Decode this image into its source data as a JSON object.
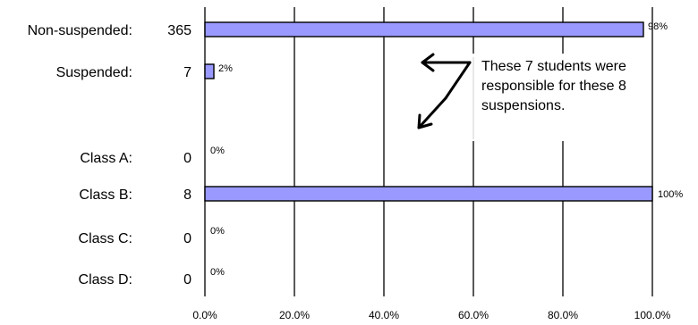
{
  "chart_data": {
    "type": "bar",
    "orientation": "horizontal",
    "xlim": [
      0,
      100
    ],
    "x_ticks": [
      "0.0%",
      "20.0%",
      "40.0%",
      "60.0%",
      "80.0%",
      "100.0%"
    ],
    "rows": [
      {
        "label": "Non-suspended:",
        "count": "365",
        "value": 98,
        "value_label": "98%"
      },
      {
        "label": "Suspended:",
        "count": "7",
        "value": 2,
        "value_label": "2%"
      },
      {
        "label": "Class A:",
        "count": "0",
        "value": 0,
        "value_label": "0%"
      },
      {
        "label": "Class B:",
        "count": "8",
        "value": 100,
        "value_label": "100%"
      },
      {
        "label": "Class C:",
        "count": "0",
        "value": 0,
        "value_label": "0%"
      },
      {
        "label": "Class D:",
        "count": "0",
        "value": 0,
        "value_label": "0%"
      }
    ],
    "annotation": [
      "These 7 students were",
      "responsible for these 8",
      "suspensions."
    ],
    "grid": true,
    "bar_color": "#9999ff"
  }
}
